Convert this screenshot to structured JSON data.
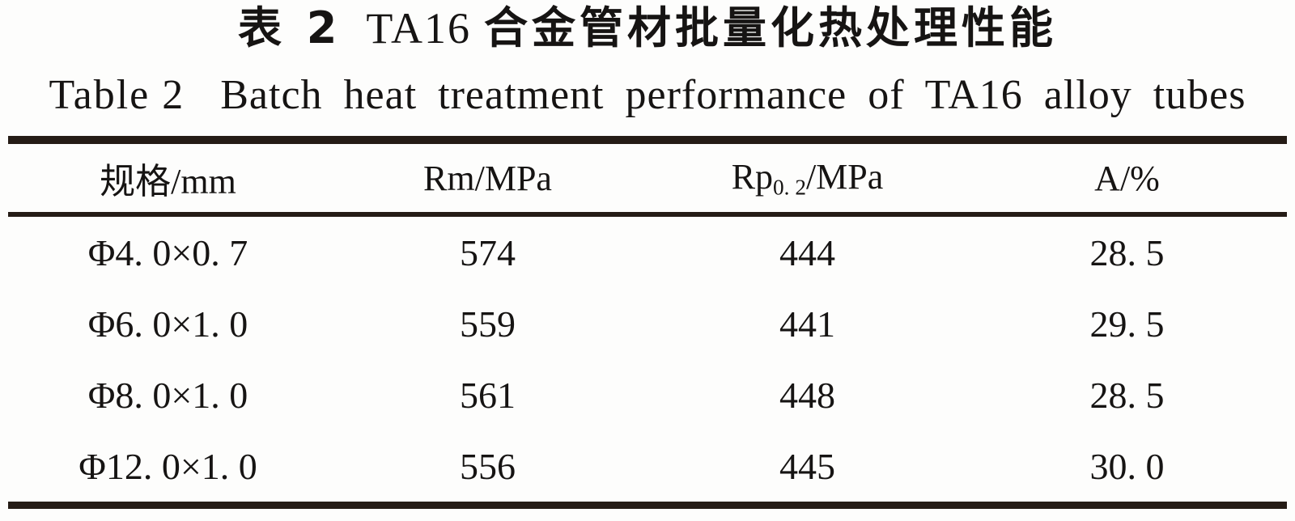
{
  "titles": {
    "zh_label": "表 2",
    "zh_code": "TA16",
    "zh_rest": "合金管材批量化热处理性能",
    "en_label": "Table 2",
    "en_text": "Batch heat treatment performance of TA16 alloy tubes"
  },
  "table": {
    "columns": [
      {
        "label": "规格/mm"
      },
      {
        "label": "Rm/MPa"
      },
      {
        "label_base": "Rp",
        "label_sub": "0. 2",
        "label_unit": "/MPa"
      },
      {
        "label": "A/%"
      }
    ],
    "rows": [
      {
        "spec": "Φ4. 0×0. 7",
        "rm": "574",
        "rp02": "444",
        "a": "28. 5"
      },
      {
        "spec": "Φ6. 0×1. 0",
        "rm": "559",
        "rp02": "441",
        "a": "29. 5"
      },
      {
        "spec": "Φ8. 0×1. 0",
        "rm": "561",
        "rp02": "448",
        "a": "28. 5"
      },
      {
        "spec": "Φ12. 0×1. 0",
        "rm": "556",
        "rp02": "445",
        "a": "30. 0"
      }
    ]
  },
  "chart_data": {
    "type": "table",
    "title_zh": "表 2 TA16 合金管材批量化热处理性能",
    "title_en": "Table 2 Batch heat treatment performance of TA16 alloy tubes",
    "columns": [
      "规格/mm",
      "Rm/MPa",
      "Rp0.2/MPa",
      "A/%"
    ],
    "rows": [
      [
        "Φ4.0×0.7",
        574,
        444,
        28.5
      ],
      [
        "Φ6.0×1.0",
        559,
        441,
        29.5
      ],
      [
        "Φ8.0×1.0",
        561,
        448,
        28.5
      ],
      [
        "Φ12.0×1.0",
        556,
        445,
        30.0
      ]
    ]
  },
  "colors": {
    "rule": "#251c16",
    "ink": "#161413",
    "background": "#fdfdfc"
  }
}
